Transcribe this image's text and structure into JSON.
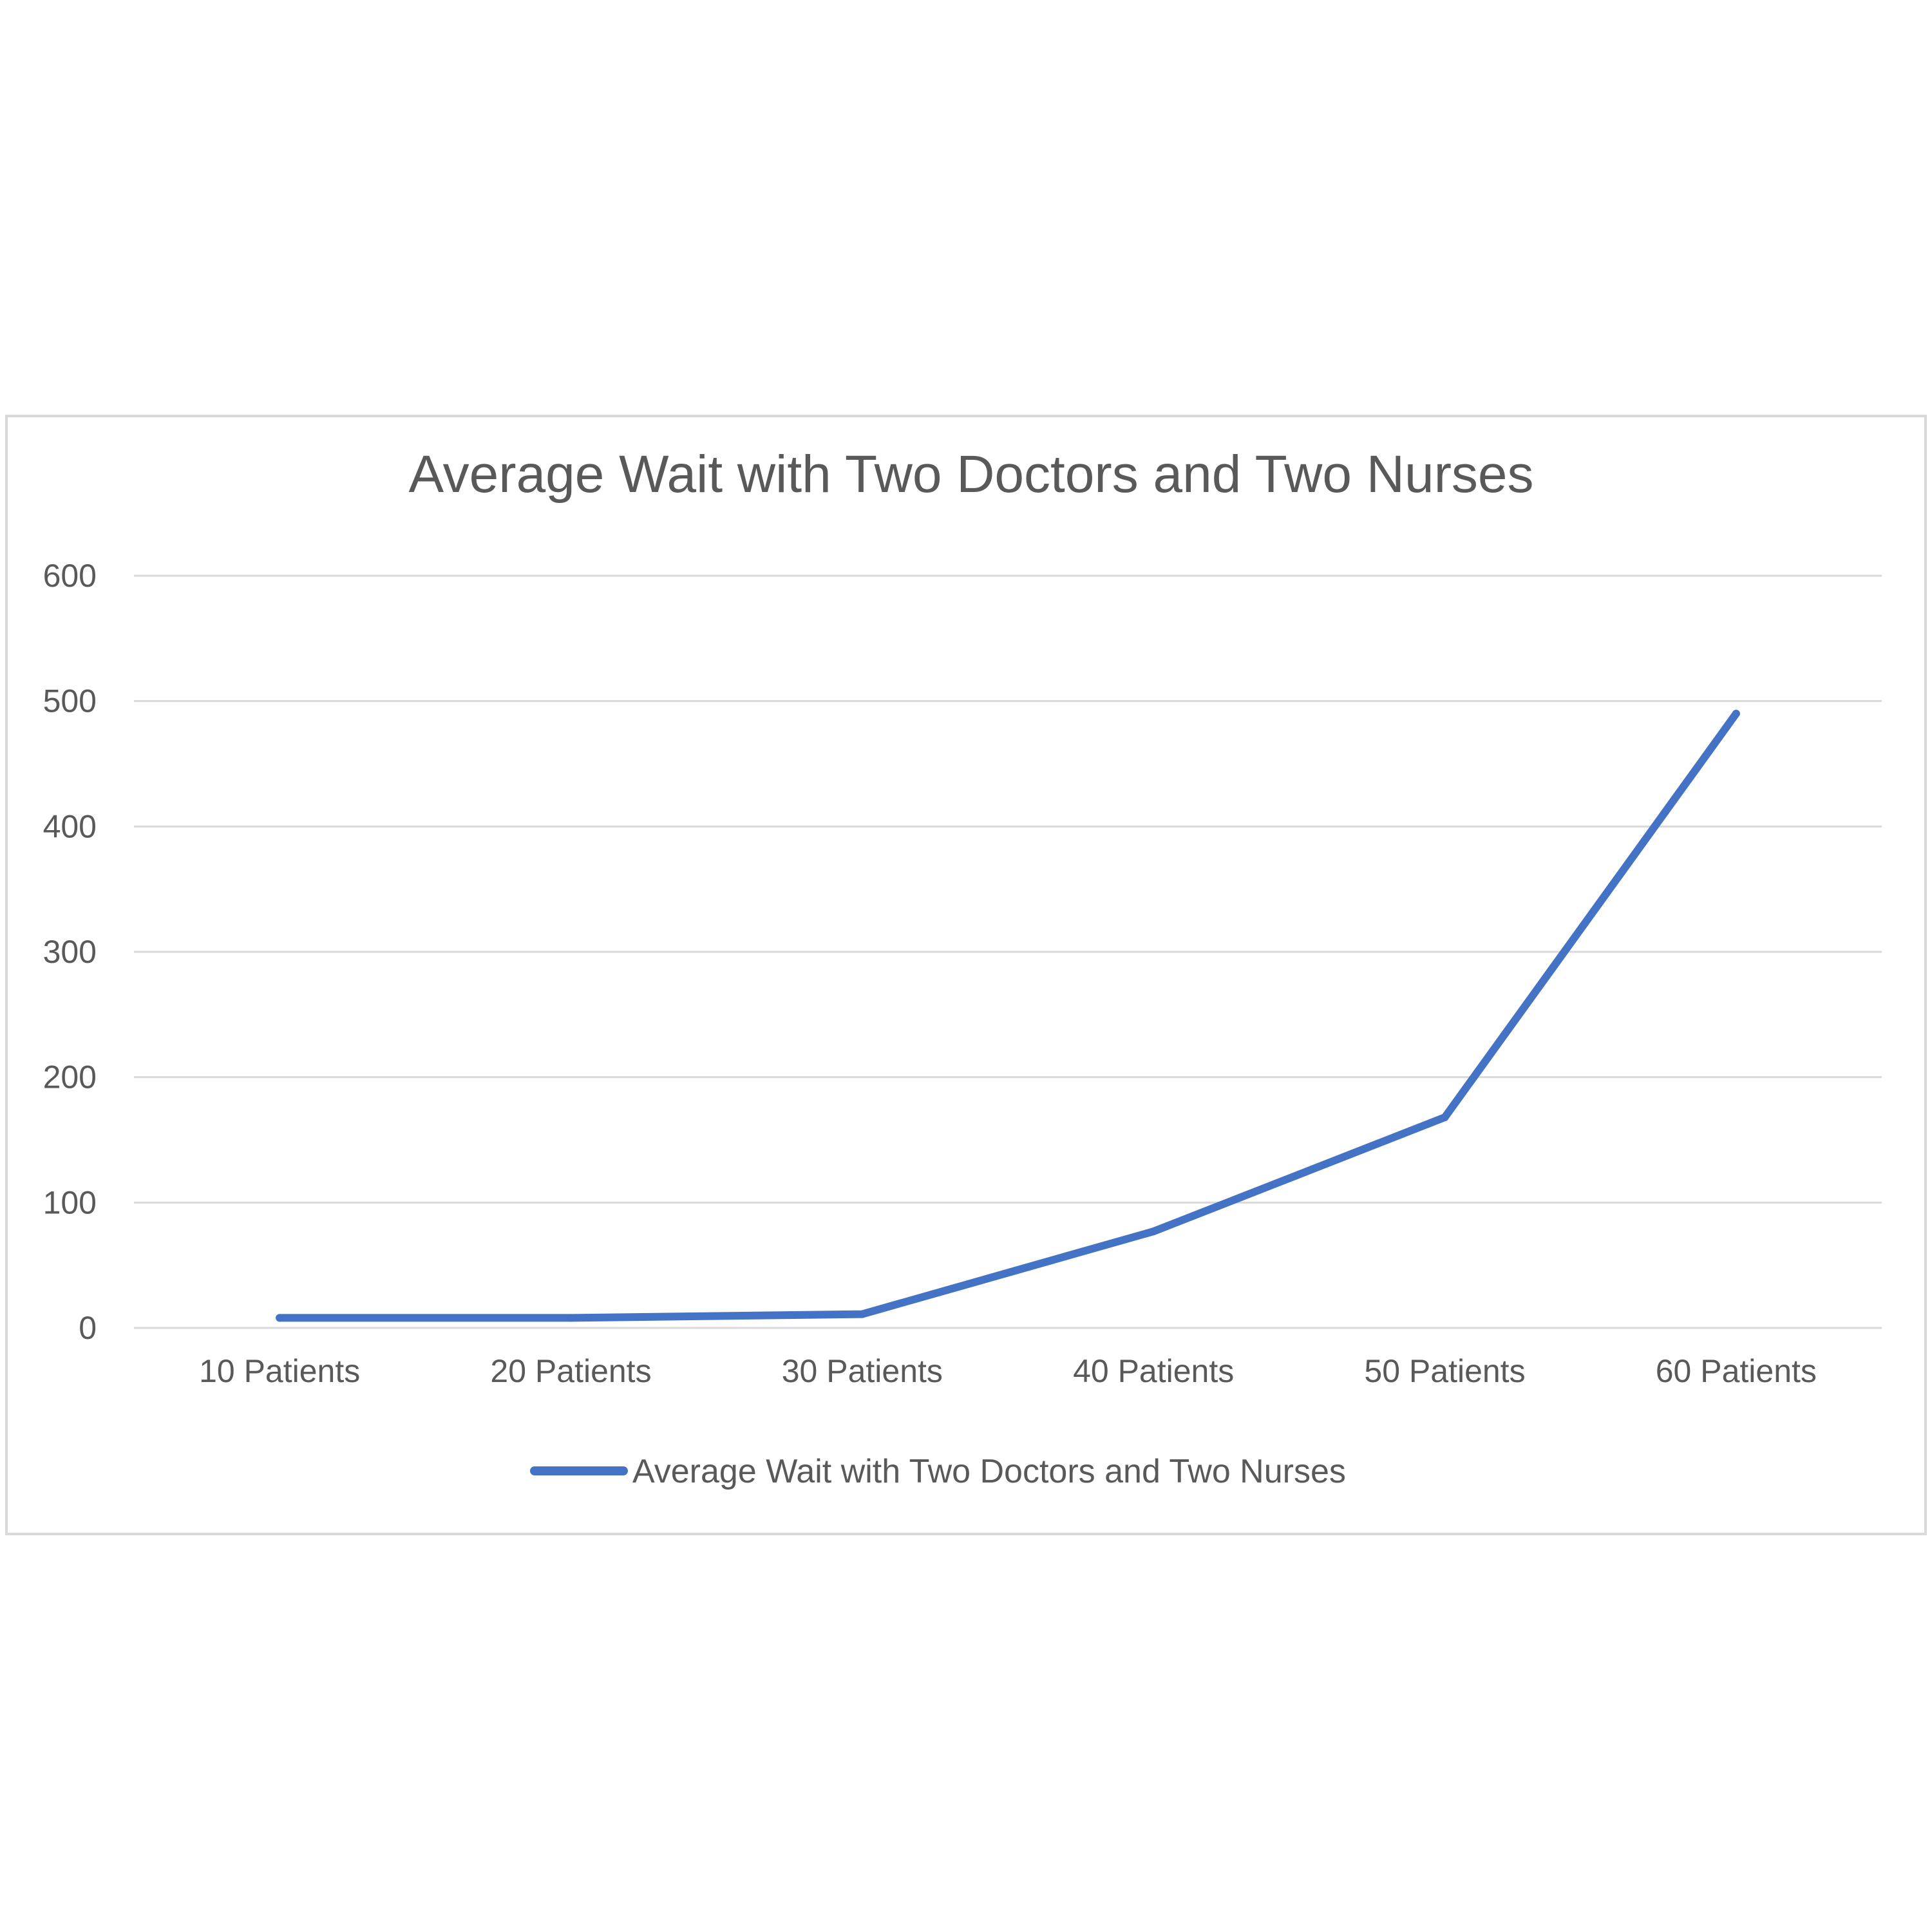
{
  "chart_data": {
    "type": "line",
    "title": "Average Wait with Two Doctors and Two Nurses",
    "xlabel": "",
    "ylabel": "",
    "categories": [
      "10 Patients",
      "20 Patients",
      "30 Patients",
      "40 Patients",
      "50 Patients",
      "60 Patients"
    ],
    "series": [
      {
        "name": "Average Wait with Two Doctors and Two Nurses",
        "values": [
          8,
          8,
          11,
          77,
          168,
          490
        ],
        "color": "#4472c4"
      }
    ],
    "ylim": [
      0,
      600
    ],
    "yticks": [
      0,
      100,
      200,
      300,
      400,
      500,
      600
    ],
    "grid": true,
    "legend_position": "bottom"
  }
}
